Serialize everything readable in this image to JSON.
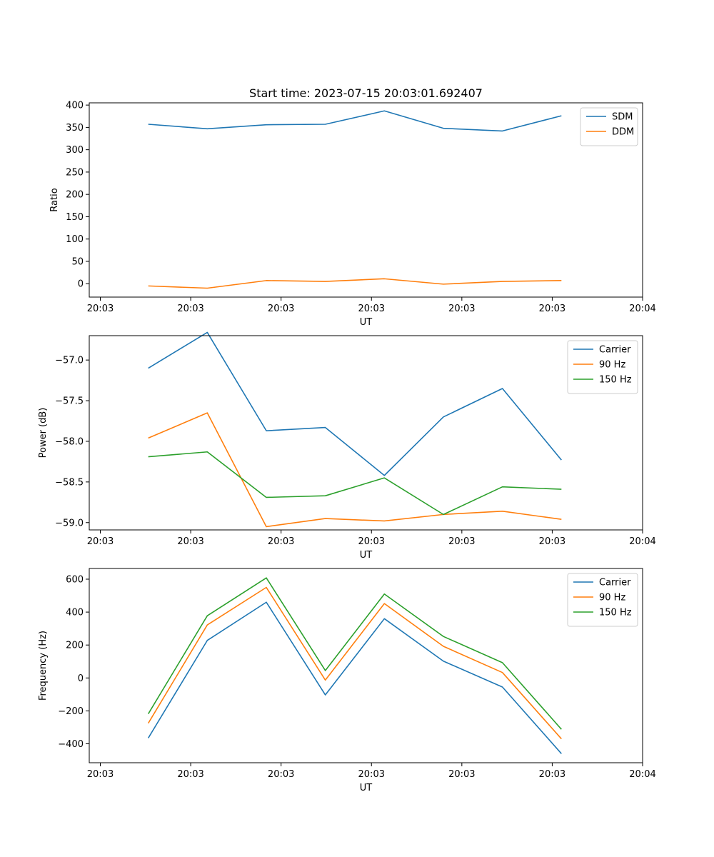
{
  "figure": {
    "title": "Start time: 2023-07-15 20:03:01.692407"
  },
  "colors": {
    "blue": "#1f77b4",
    "orange": "#ff7f0e",
    "green": "#2ca02c"
  },
  "chart_data": [
    {
      "type": "line",
      "title": "Start time: 2023-07-15 20:03:01.692407",
      "xlabel": "UT",
      "ylabel": "Ratio",
      "x": [
        0.8,
        1.6,
        2.4,
        3.2,
        4.0,
        4.8,
        5.6,
        6.4
      ],
      "xlim": [
        0.0,
        7.5
      ],
      "xticks": [
        0.15,
        1.375,
        2.6,
        3.825,
        5.05,
        6.275,
        7.5
      ],
      "xtick_labels": [
        "20:03",
        "20:03",
        "20:03",
        "20:03",
        "20:03",
        "20:03",
        "20:04"
      ],
      "ylim": [
        -30,
        405
      ],
      "yticks": [
        0,
        50,
        100,
        150,
        200,
        250,
        300,
        350,
        400
      ],
      "ytick_labels": [
        "0",
        "50",
        "100",
        "150",
        "200",
        "250",
        "300",
        "350",
        "400"
      ],
      "legend_position": "top-right",
      "series": [
        {
          "name": "SDM",
          "color": "blue",
          "values": [
            357,
            347,
            356,
            357,
            387,
            348,
            342,
            376
          ]
        },
        {
          "name": "DDM",
          "color": "orange",
          "values": [
            -5,
            -10,
            7,
            5,
            11,
            -1,
            5,
            7
          ]
        }
      ]
    },
    {
      "type": "line",
      "title": "",
      "xlabel": "UT",
      "ylabel": "Power (dB)",
      "x": [
        0.8,
        1.6,
        2.4,
        3.2,
        4.0,
        4.8,
        5.6,
        6.4
      ],
      "xlim": [
        0.0,
        7.5
      ],
      "xticks": [
        0.15,
        1.375,
        2.6,
        3.825,
        5.05,
        6.275,
        7.5
      ],
      "xtick_labels": [
        "20:03",
        "20:03",
        "20:03",
        "20:03",
        "20:03",
        "20:03",
        "20:04"
      ],
      "ylim": [
        -59.09,
        -56.7
      ],
      "yticks": [
        -59.0,
        -58.5,
        -58.0,
        -57.5,
        -57.0
      ],
      "ytick_labels": [
        "−59.0",
        "−58.5",
        "−58.0",
        "−57.5",
        "−57.0"
      ],
      "legend_position": "top-right",
      "series": [
        {
          "name": "Carrier",
          "color": "blue",
          "values": [
            -57.1,
            -56.66,
            -57.87,
            -57.83,
            -58.42,
            -57.7,
            -57.35,
            -58.23
          ]
        },
        {
          "name": "90 Hz",
          "color": "orange",
          "values": [
            -57.96,
            -57.65,
            -59.05,
            -58.95,
            -58.98,
            -58.9,
            -58.86,
            -58.96
          ]
        },
        {
          "name": "150 Hz",
          "color": "green",
          "values": [
            -58.19,
            -58.13,
            -58.69,
            -58.67,
            -58.45,
            -58.9,
            -58.56,
            -58.59
          ]
        }
      ]
    },
    {
      "type": "line",
      "title": "",
      "xlabel": "UT",
      "ylabel": "Frequency (Hz)",
      "x": [
        0.8,
        1.6,
        2.4,
        3.2,
        4.0,
        4.8,
        5.6,
        6.4
      ],
      "xlim": [
        0.0,
        7.5
      ],
      "xticks": [
        0.15,
        1.375,
        2.6,
        3.825,
        5.05,
        6.275,
        7.5
      ],
      "xtick_labels": [
        "20:03",
        "20:03",
        "20:03",
        "20:03",
        "20:03",
        "20:03",
        "20:04"
      ],
      "ylim": [
        -515,
        665
      ],
      "yticks": [
        -400,
        -200,
        0,
        200,
        400,
        600
      ],
      "ytick_labels": [
        "−400",
        "−200",
        "0",
        "200",
        "400",
        "600"
      ],
      "legend_position": "top-right",
      "series": [
        {
          "name": "Carrier",
          "color": "blue",
          "values": [
            -365,
            228,
            460,
            -103,
            360,
            102,
            -55,
            -460
          ]
        },
        {
          "name": "90 Hz",
          "color": "orange",
          "values": [
            -275,
            322,
            550,
            -13,
            452,
            192,
            33,
            -370
          ]
        },
        {
          "name": "150 Hz",
          "color": "green",
          "values": [
            -218,
            378,
            608,
            45,
            510,
            252,
            93,
            -312
          ]
        }
      ]
    }
  ]
}
